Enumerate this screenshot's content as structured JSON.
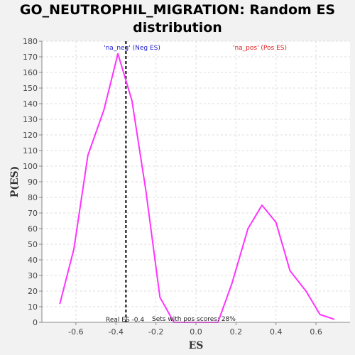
{
  "chart_data": {
    "type": "line",
    "title": "GO_NEUTROPHIL_MIGRATION: Random ES distribution",
    "xlabel": "ES",
    "ylabel": "P(ES)",
    "xlim": [
      -0.77,
      0.77
    ],
    "ylim": [
      0,
      180
    ],
    "x_ticks": [
      -0.6,
      -0.4,
      -0.2,
      0.0,
      0.2,
      0.4,
      0.6
    ],
    "x_tick_labels": [
      "-0.6",
      "-0.4",
      "-0.2",
      "0.0",
      "0.2",
      "0.4",
      "0.6"
    ],
    "y_ticks": [
      0,
      10,
      20,
      30,
      40,
      50,
      60,
      70,
      80,
      90,
      100,
      110,
      120,
      130,
      140,
      150,
      160,
      170,
      180
    ],
    "grid": true,
    "series": [
      {
        "color": "#ff33ff",
        "x": [
          -0.68,
          -0.61,
          -0.54,
          -0.46,
          -0.39,
          -0.32,
          -0.25,
          -0.18,
          -0.11,
          -0.04,
          0.04,
          0.11,
          0.18,
          0.26,
          0.33,
          0.4,
          0.47,
          0.55,
          0.62,
          0.69
        ],
        "y": [
          12,
          47,
          107,
          136,
          172,
          142,
          84,
          16,
          0,
          0,
          0,
          0,
          25,
          60,
          75,
          64,
          33,
          20,
          5,
          2
        ]
      }
    ],
    "real_es": -0.35,
    "annotations": {
      "neg_label": "'na_neg' (Neg ES)",
      "pos_label": "'na_pos' (Pos ES)",
      "real_es_label": "Real ES -0.4",
      "pos_scores_label": "Sets with pos scores: 28%"
    }
  }
}
